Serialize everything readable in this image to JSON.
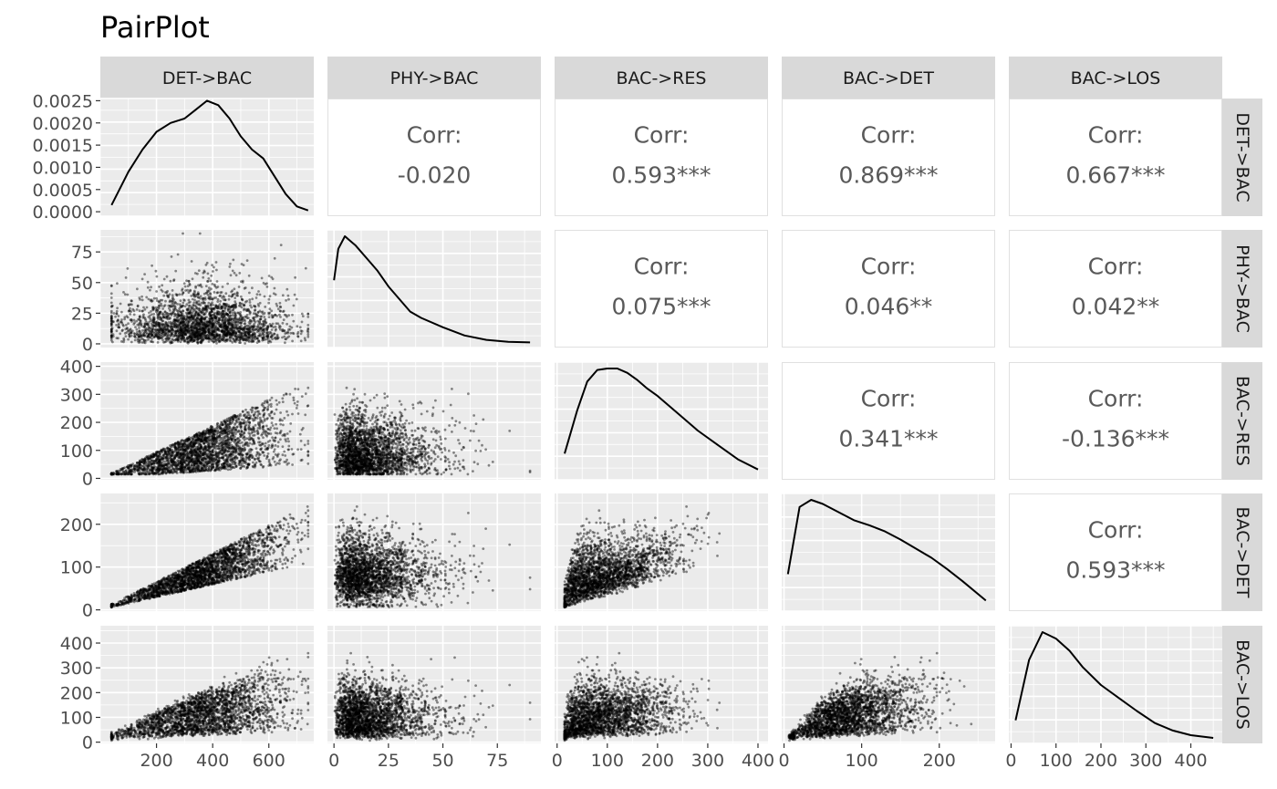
{
  "chart_data": {
    "type": "scatter",
    "title": "PairPlot",
    "variables": [
      "DET->BAC",
      "PHY->BAC",
      "BAC->RES",
      "BAC->DET",
      "BAC->LOS"
    ],
    "grid": true,
    "corr_label": "Corr:",
    "correlations": [
      {
        "row": 0,
        "col": 1,
        "value": "-0.020"
      },
      {
        "row": 0,
        "col": 2,
        "value": "0.593***"
      },
      {
        "row": 0,
        "col": 3,
        "value": "0.869***"
      },
      {
        "row": 0,
        "col": 4,
        "value": "0.667***"
      },
      {
        "row": 1,
        "col": 2,
        "value": "0.075***"
      },
      {
        "row": 1,
        "col": 3,
        "value": "0.046**"
      },
      {
        "row": 1,
        "col": 4,
        "value": "0.042**"
      },
      {
        "row": 2,
        "col": 3,
        "value": "0.341***"
      },
      {
        "row": 2,
        "col": 4,
        "value": "-0.136***"
      },
      {
        "row": 3,
        "col": 4,
        "value": "0.593***"
      }
    ],
    "x_axes": [
      {
        "range": [
          0,
          760
        ],
        "ticks": [
          200,
          400,
          600
        ],
        "labels": [
          "200",
          "400",
          "600"
        ]
      },
      {
        "range": [
          -3,
          95
        ],
        "ticks": [
          0,
          25,
          50,
          75
        ],
        "labels": [
          "0",
          "25",
          "50",
          "75"
        ]
      },
      {
        "range": [
          -5,
          420
        ],
        "ticks": [
          0,
          100,
          200,
          300,
          400
        ],
        "labels": [
          "0",
          "100",
          "200",
          "300",
          "400"
        ]
      },
      {
        "range": [
          -3,
          272
        ],
        "ticks": [
          0,
          100,
          200
        ],
        "labels": [
          "0",
          "100",
          "200"
        ]
      },
      {
        "range": [
          -5,
          470
        ],
        "ticks": [
          0,
          100,
          200,
          300,
          400
        ],
        "labels": [
          "0",
          "100",
          "200",
          "300",
          "400"
        ]
      }
    ],
    "y_axes": [
      {
        "range": [
          -0.0001,
          0.00255
        ],
        "ticks": [
          0,
          0.0005,
          0.001,
          0.0015,
          0.002,
          0.0025
        ],
        "labels": [
          "0.0000",
          "0.0005",
          "0.0010",
          "0.0015",
          "0.0020",
          "0.0025"
        ]
      },
      {
        "range": [
          -3,
          93
        ],
        "ticks": [
          0,
          25,
          50,
          75
        ],
        "labels": [
          "0",
          "25",
          "50",
          "75"
        ]
      },
      {
        "range": [
          -5,
          415
        ],
        "ticks": [
          0,
          100,
          200,
          300,
          400
        ],
        "labels": [
          "0",
          "100",
          "200",
          "300",
          "400"
        ]
      },
      {
        "range": [
          -3,
          272
        ],
        "ticks": [
          0,
          100,
          200
        ],
        "labels": [
          "0",
          "100",
          "200"
        ]
      },
      {
        "range": [
          -5,
          470
        ],
        "ticks": [
          0,
          100,
          200,
          300,
          400
        ],
        "labels": [
          "0",
          "100",
          "200",
          "300",
          "400"
        ]
      }
    ],
    "density_curves": [
      {
        "variable": "DET->BAC",
        "x": [
          40,
          100,
          150,
          200,
          250,
          300,
          340,
          380,
          420,
          460,
          500,
          540,
          580,
          620,
          660,
          700,
          740
        ],
        "y": [
          0.00015,
          0.0009,
          0.0014,
          0.0018,
          0.002,
          0.0021,
          0.0023,
          0.0025,
          0.0024,
          0.0021,
          0.0017,
          0.0014,
          0.0012,
          0.0008,
          0.0004,
          0.00012,
          3e-05
        ]
      },
      {
        "variable": "PHY->BAC",
        "x": [
          0,
          2,
          5,
          10,
          15,
          20,
          25,
          30,
          35,
          40,
          50,
          60,
          70,
          80,
          90
        ],
        "y": [
          0.1,
          0.15,
          0.17,
          0.155,
          0.135,
          0.115,
          0.09,
          0.07,
          0.05,
          0.04,
          0.025,
          0.012,
          0.005,
          0.002,
          0.001
        ]
      },
      {
        "variable": "BAC->RES",
        "x": [
          15,
          40,
          60,
          80,
          100,
          120,
          140,
          160,
          180,
          200,
          240,
          280,
          320,
          360,
          400
        ],
        "y": [
          0.0015,
          0.0045,
          0.0065,
          0.0073,
          0.0074,
          0.0074,
          0.0071,
          0.0066,
          0.006,
          0.0055,
          0.0043,
          0.0031,
          0.0021,
          0.0011,
          0.0004
        ]
      },
      {
        "variable": "BAC->DET",
        "x": [
          5,
          20,
          35,
          50,
          70,
          90,
          110,
          130,
          150,
          170,
          190,
          210,
          230,
          260
        ],
        "y": [
          0.0032,
          0.0098,
          0.0105,
          0.0101,
          0.0093,
          0.0085,
          0.008,
          0.0074,
          0.0066,
          0.0057,
          0.0048,
          0.0037,
          0.0025,
          0.0006
        ]
      },
      {
        "variable": "BAC->LOS",
        "x": [
          10,
          40,
          70,
          100,
          130,
          160,
          200,
          240,
          280,
          320,
          360,
          400,
          450
        ],
        "y": [
          0.002,
          0.0085,
          0.0115,
          0.0108,
          0.0095,
          0.0077,
          0.0058,
          0.0044,
          0.003,
          0.0017,
          0.0009,
          0.0004,
          0.0001
        ]
      }
    ],
    "scatter_points_note": "~2500 jittered points per lower-triangle panel",
    "scatter_relations": [
      {
        "row": 1,
        "col": 0
      },
      {
        "row": 2,
        "col": 0
      },
      {
        "row": 2,
        "col": 1
      },
      {
        "row": 3,
        "col": 0
      },
      {
        "row": 3,
        "col": 1
      },
      {
        "row": 3,
        "col": 2
      },
      {
        "row": 4,
        "col": 0
      },
      {
        "row": 4,
        "col": 1
      },
      {
        "row": 4,
        "col": 2
      },
      {
        "row": 4,
        "col": 3
      }
    ]
  }
}
